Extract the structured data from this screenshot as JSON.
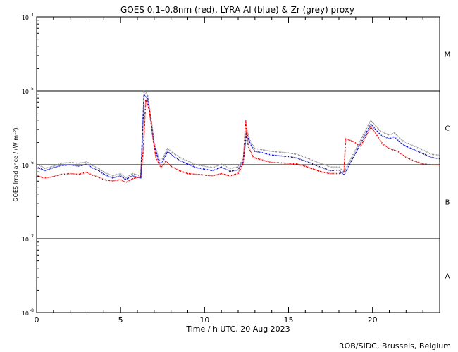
{
  "chart_data": {
    "type": "line",
    "title": "GOES 0.1–0.8nm (red), LYRA Al (blue) & Zr (grey) proxy",
    "xlabel": "Time / h UTC, 20 Aug 2023",
    "ylabel": "GOES Irradiance / (W m⁻²)",
    "xlim": [
      0,
      24
    ],
    "ylim_log10": [
      -8,
      -4
    ],
    "xticks": [
      0,
      5,
      10,
      15,
      20
    ],
    "xtick_labels": [
      "0",
      "5",
      "10",
      "15",
      "20"
    ],
    "yticks_log10": [
      -8,
      -7,
      -6,
      -5,
      -4
    ],
    "ytick_labels": [
      {
        "base": "10",
        "exp": "-8"
      },
      {
        "base": "10",
        "exp": "-7"
      },
      {
        "base": "10",
        "exp": "-6"
      },
      {
        "base": "10",
        "exp": "-5"
      },
      {
        "base": "10",
        "exp": "-4"
      }
    ],
    "flare_class_levels_log10": [
      -7,
      -6,
      -5
    ],
    "flare_classes": [
      {
        "label": "A",
        "center_log10": -7.5
      },
      {
        "label": "B",
        "center_log10": -6.5
      },
      {
        "label": "C",
        "center_log10": -5.5
      },
      {
        "label": "M",
        "center_log10": -4.5
      }
    ],
    "series": [
      {
        "name": "Zr (grey) proxy",
        "color": "#909090",
        "points": [
          [
            0,
            -5.99
          ],
          [
            0.5,
            -6.05
          ],
          [
            1,
            -6.02
          ],
          [
            1.5,
            -5.98
          ],
          [
            2,
            -5.97
          ],
          [
            2.5,
            -5.98
          ],
          [
            3,
            -5.96
          ],
          [
            3.3,
            -6.01
          ],
          [
            3.7,
            -6.05
          ],
          [
            4,
            -6.1
          ],
          [
            4.5,
            -6.15
          ],
          [
            5,
            -6.12
          ],
          [
            5.3,
            -6.18
          ],
          [
            5.7,
            -6.12
          ],
          [
            6.2,
            -6.15
          ],
          [
            6.4,
            -5.0
          ],
          [
            6.6,
            -5.05
          ],
          [
            6.8,
            -5.35
          ],
          [
            7.0,
            -5.7
          ],
          [
            7.3,
            -5.94
          ],
          [
            7.5,
            -5.92
          ],
          [
            7.8,
            -5.78
          ],
          [
            8.0,
            -5.82
          ],
          [
            8.5,
            -5.9
          ],
          [
            9.0,
            -5.95
          ],
          [
            9.5,
            -6.0
          ],
          [
            10.0,
            -6.02
          ],
          [
            10.5,
            -6.04
          ],
          [
            11,
            -5.99
          ],
          [
            11.5,
            -6.05
          ],
          [
            12,
            -6.03
          ],
          [
            12.3,
            -5.92
          ],
          [
            12.5,
            -5.52
          ],
          [
            12.7,
            -5.67
          ],
          [
            13,
            -5.78
          ],
          [
            13.5,
            -5.8
          ],
          [
            14,
            -5.82
          ],
          [
            15,
            -5.84
          ],
          [
            15.5,
            -5.86
          ],
          [
            16,
            -5.9
          ],
          [
            17,
            -5.99
          ],
          [
            17.5,
            -6.03
          ],
          [
            18,
            -6.03
          ],
          [
            18.3,
            -6.1
          ],
          [
            19.9,
            -5.4
          ],
          [
            20,
            -5.43
          ],
          [
            20.5,
            -5.55
          ],
          [
            21,
            -5.6
          ],
          [
            21.3,
            -5.57
          ],
          [
            21.7,
            -5.66
          ],
          [
            22,
            -5.7
          ],
          [
            23,
            -5.8
          ],
          [
            23.5,
            -5.86
          ],
          [
            24,
            -5.87
          ]
        ]
      },
      {
        "name": "LYRA Al (blue)",
        "color": "#1010c0",
        "points": [
          [
            0,
            -6.03
          ],
          [
            0.5,
            -6.08
          ],
          [
            1,
            -6.04
          ],
          [
            1.5,
            -6.01
          ],
          [
            2,
            -6.0
          ],
          [
            2.5,
            -6.02
          ],
          [
            3,
            -5.99
          ],
          [
            3.3,
            -6.04
          ],
          [
            3.7,
            -6.08
          ],
          [
            4,
            -6.13
          ],
          [
            4.5,
            -6.18
          ],
          [
            5,
            -6.15
          ],
          [
            5.3,
            -6.2
          ],
          [
            5.7,
            -6.15
          ],
          [
            6.2,
            -6.18
          ],
          [
            6.4,
            -5.05
          ],
          [
            6.6,
            -5.1
          ],
          [
            6.8,
            -5.4
          ],
          [
            7.0,
            -5.74
          ],
          [
            7.3,
            -5.98
          ],
          [
            7.5,
            -5.96
          ],
          [
            7.8,
            -5.82
          ],
          [
            8.0,
            -5.86
          ],
          [
            8.5,
            -5.94
          ],
          [
            9.0,
            -5.99
          ],
          [
            9.5,
            -6.04
          ],
          [
            10.0,
            -6.06
          ],
          [
            10.5,
            -6.08
          ],
          [
            11,
            -6.03
          ],
          [
            11.5,
            -6.09
          ],
          [
            12,
            -6.07
          ],
          [
            12.3,
            -5.96
          ],
          [
            12.5,
            -5.57
          ],
          [
            12.7,
            -5.71
          ],
          [
            13,
            -5.82
          ],
          [
            13.5,
            -5.84
          ],
          [
            14,
            -5.87
          ],
          [
            15,
            -5.89
          ],
          [
            15.5,
            -5.91
          ],
          [
            16,
            -5.95
          ],
          [
            17,
            -6.04
          ],
          [
            17.5,
            -6.08
          ],
          [
            18,
            -6.07
          ],
          [
            18.3,
            -6.14
          ],
          [
            19.9,
            -5.45
          ],
          [
            20,
            -5.48
          ],
          [
            20.5,
            -5.6
          ],
          [
            21,
            -5.65
          ],
          [
            21.3,
            -5.62
          ],
          [
            21.7,
            -5.71
          ],
          [
            22,
            -5.75
          ],
          [
            23,
            -5.85
          ],
          [
            23.5,
            -5.9
          ],
          [
            24,
            -5.92
          ]
        ]
      },
      {
        "name": "GOES 0.1–0.8nm (red)",
        "color": "#e00000",
        "points": [
          [
            0,
            -6.15
          ],
          [
            0.5,
            -6.18
          ],
          [
            1,
            -6.16
          ],
          [
            1.5,
            -6.13
          ],
          [
            2,
            -6.12
          ],
          [
            2.5,
            -6.13
          ],
          [
            3,
            -6.1
          ],
          [
            3.3,
            -6.14
          ],
          [
            3.7,
            -6.17
          ],
          [
            4,
            -6.2
          ],
          [
            4.5,
            -6.22
          ],
          [
            5,
            -6.2
          ],
          [
            5.3,
            -6.24
          ],
          [
            5.7,
            -6.19
          ],
          [
            6.2,
            -6.16
          ],
          [
            6.35,
            -5.8
          ],
          [
            6.5,
            -5.12
          ],
          [
            6.7,
            -5.25
          ],
          [
            6.9,
            -5.6
          ],
          [
            7.1,
            -5.9
          ],
          [
            7.4,
            -6.04
          ],
          [
            7.7,
            -5.95
          ],
          [
            8.0,
            -6.02
          ],
          [
            8.5,
            -6.08
          ],
          [
            9.0,
            -6.12
          ],
          [
            9.5,
            -6.13
          ],
          [
            10,
            -6.14
          ],
          [
            10.5,
            -6.15
          ],
          [
            11,
            -6.12
          ],
          [
            11.5,
            -6.15
          ],
          [
            12,
            -6.12
          ],
          [
            12.3,
            -5.98
          ],
          [
            12.45,
            -5.4
          ],
          [
            12.6,
            -5.75
          ],
          [
            12.9,
            -5.9
          ],
          [
            13.5,
            -5.94
          ],
          [
            14,
            -5.97
          ],
          [
            15,
            -5.98
          ],
          [
            15.5,
            -5.99
          ],
          [
            16,
            -6.02
          ],
          [
            17,
            -6.1
          ],
          [
            17.5,
            -6.12
          ],
          [
            18,
            -6.12
          ],
          [
            18.3,
            -6.1
          ],
          [
            18.4,
            -5.65
          ],
          [
            18.8,
            -5.68
          ],
          [
            19.3,
            -5.75
          ],
          [
            19.6,
            -5.62
          ],
          [
            19.9,
            -5.49
          ],
          [
            20.2,
            -5.58
          ],
          [
            20.6,
            -5.72
          ],
          [
            21,
            -5.78
          ],
          [
            21.5,
            -5.82
          ],
          [
            22,
            -5.9
          ],
          [
            22.5,
            -5.95
          ],
          [
            23,
            -5.99
          ],
          [
            23.5,
            -6.0
          ],
          [
            24,
            -6.0
          ]
        ]
      }
    ]
  },
  "footer": {
    "credit": "ROB/SIDC, Brussels, Belgium"
  }
}
